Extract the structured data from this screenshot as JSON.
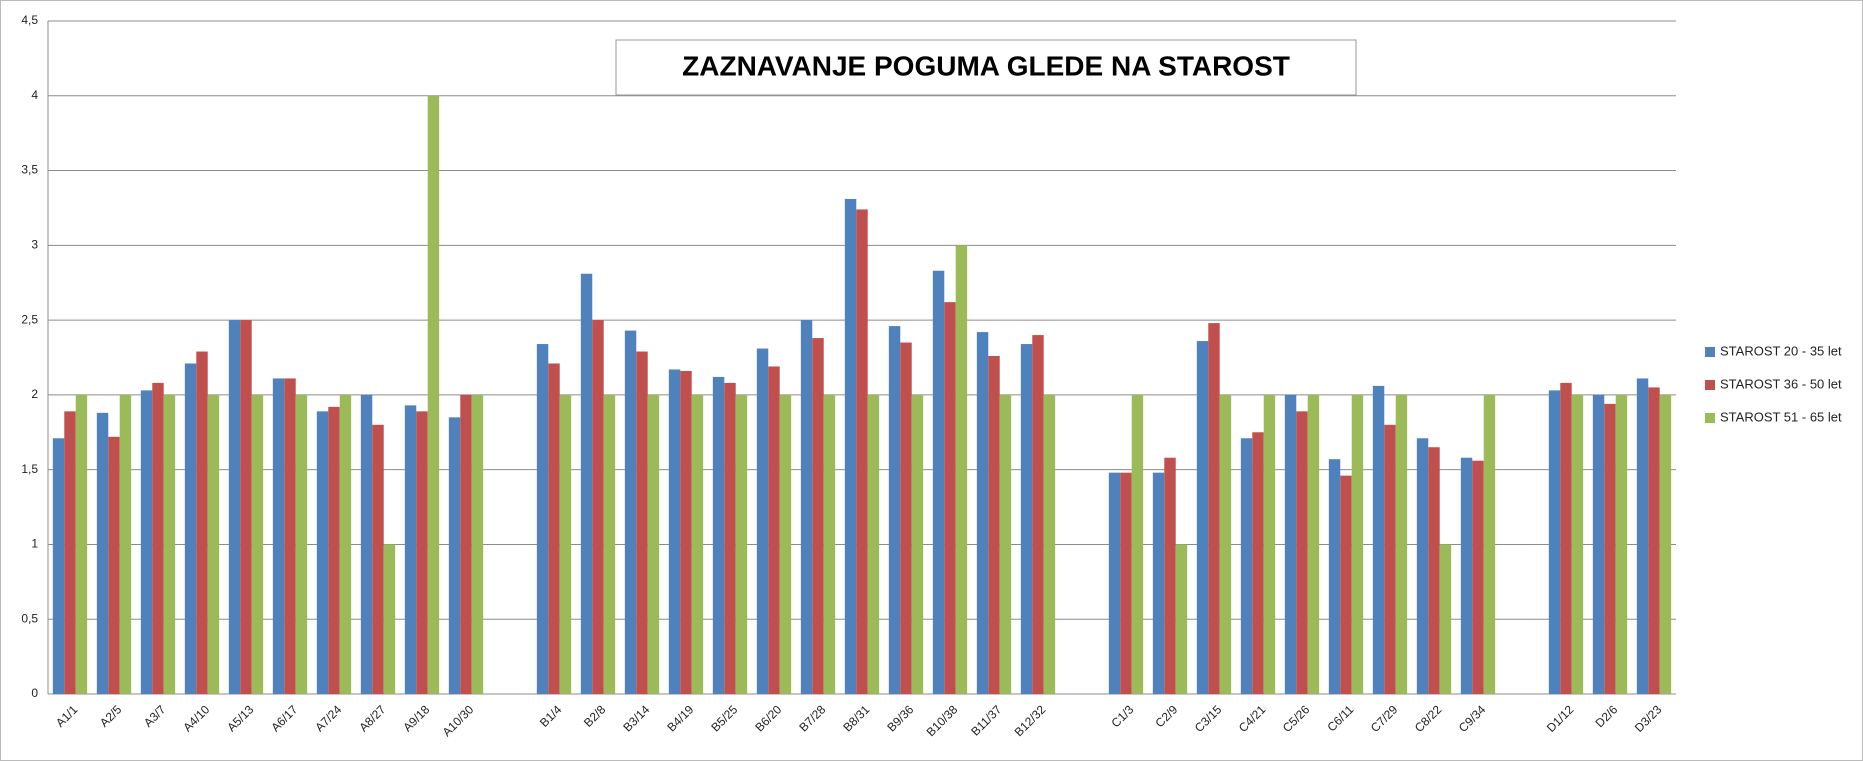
{
  "chart_data": {
    "type": "bar",
    "title": "ZAZNAVANJE POGUMA GLEDE NA STAROST",
    "categories": [
      "A1/1",
      "A2/5",
      "A3/7",
      "A4/10",
      "A5/13",
      "A6/17",
      "A7/24",
      "A8/27",
      "A9/18",
      "A10/30",
      null,
      "B1/4",
      "B2/8",
      "B3/14",
      "B4/19",
      "B5/25",
      "B6/20",
      "B7/28",
      "B8/31",
      "B9/36",
      "B10/38",
      "B11/37",
      "B12/32",
      null,
      "C1/3",
      "C2/9",
      "C3/15",
      "C4/21",
      "C5/26",
      "C6/11",
      "C7/29",
      "C8/22",
      "C9/34",
      null,
      "D1/12",
      "D2/6",
      "D3/23"
    ],
    "series": [
      {
        "name": "STAROST 20 - 35 let",
        "color": "#4f81bd",
        "values": [
          1.71,
          1.88,
          2.03,
          2.21,
          2.5,
          2.11,
          1.89,
          2,
          1.93,
          1.85,
          null,
          2.34,
          2.81,
          2.43,
          2.17,
          2.12,
          2.31,
          2.5,
          3.31,
          2.46,
          2.83,
          2.42,
          2.34,
          null,
          1.48,
          1.48,
          2.36,
          1.71,
          2,
          1.57,
          2.06,
          1.71,
          1.58,
          null,
          2.03,
          2,
          2.11
        ]
      },
      {
        "name": "STAROST 36 - 50 let",
        "color": "#c0504d",
        "values": [
          1.89,
          1.72,
          2.08,
          2.29,
          2.5,
          2.11,
          1.92,
          1.8,
          1.89,
          2,
          null,
          2.21,
          2.5,
          2.29,
          2.16,
          2.08,
          2.19,
          2.38,
          3.24,
          2.35,
          2.62,
          2.26,
          2.4,
          null,
          1.48,
          1.58,
          2.48,
          1.75,
          1.89,
          1.46,
          1.8,
          1.65,
          1.56,
          null,
          2.08,
          1.94,
          2.05
        ]
      },
      {
        "name": "STAROST 51 - 65 let",
        "color": "#9bbb59",
        "values": [
          2,
          2,
          2,
          2,
          2,
          2,
          2,
          1,
          4,
          2,
          null,
          2,
          2,
          2,
          2,
          2,
          2,
          2,
          2,
          2,
          3,
          2,
          2,
          null,
          2,
          1,
          2,
          2,
          2,
          2,
          2,
          1,
          2,
          null,
          2,
          2,
          2
        ]
      }
    ],
    "ylim": [
      0,
      4.5
    ],
    "yticks": [
      0,
      {
        "value": 0.5,
        "label": "0,5"
      },
      1,
      {
        "value": 1.5,
        "label": "1,5"
      },
      2,
      {
        "value": 2.5,
        "label": "2,5"
      },
      3,
      {
        "value": 3.5,
        "label": "3,5"
      },
      4,
      {
        "value": 4.5,
        "label": "4,5"
      }
    ],
    "grid": true,
    "legend": "right"
  }
}
